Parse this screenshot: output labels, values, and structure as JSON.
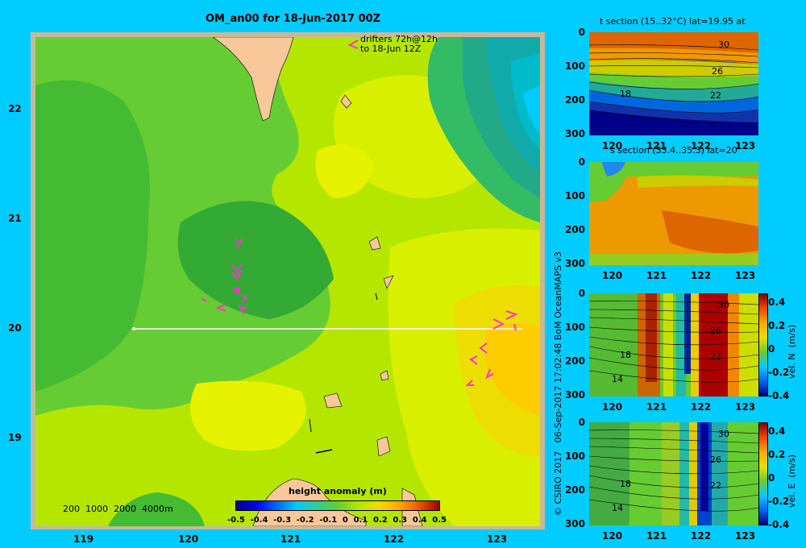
{
  "map": {
    "title": "OM_an00 for 18-Jun-2017 00Z",
    "drifter_note_1": "drifters 72h@12h",
    "drifter_note_2": "to 18-Jun 12Z",
    "lat_ticks": [
      "22",
      "21",
      "20",
      "19"
    ],
    "lon_ticks": [
      "119",
      "120",
      "121",
      "122",
      "123"
    ],
    "depth_legend": "200  1000  2000  4000m",
    "colorbar": {
      "title": "height anomaly  (m)",
      "labels": [
        "-0.5",
        "-0.4",
        "-0.3",
        "-0.2",
        "-0.1",
        "0",
        "0.1",
        "0.2",
        "0.3",
        "0.4",
        "0.5"
      ]
    }
  },
  "credit": "© CSIRO 2017   06-Sep-2017 17:02:48 BoM OceanMAPS v3",
  "panels": [
    {
      "title": "t section (15..32°C) lat=19.95 at",
      "contours": [
        "30",
        "26",
        "18",
        "22"
      ]
    },
    {
      "title": "s section (33.4..35.3) lat=20"
    },
    {
      "title": "",
      "cbar_label": "vel. N  (m/s)",
      "contours": [
        "30",
        "26",
        "18",
        "22",
        "14"
      ]
    },
    {
      "title": "",
      "cbar_label": "vel. E  (m/s)",
      "contours": [
        "30",
        "26",
        "18",
        "22",
        "14"
      ]
    }
  ],
  "section_axes": {
    "depth_ticks": [
      "0",
      "100",
      "200",
      "300"
    ],
    "lon_ticks": [
      "120",
      "121",
      "122",
      "123"
    ],
    "vel_ticks": [
      "0.4",
      "0.2",
      "0",
      "-0.2",
      "-0.4"
    ]
  },
  "colors": {
    "background": "#00ccff",
    "drifter": "#ff33cc",
    "land": "#f8c89a"
  }
}
